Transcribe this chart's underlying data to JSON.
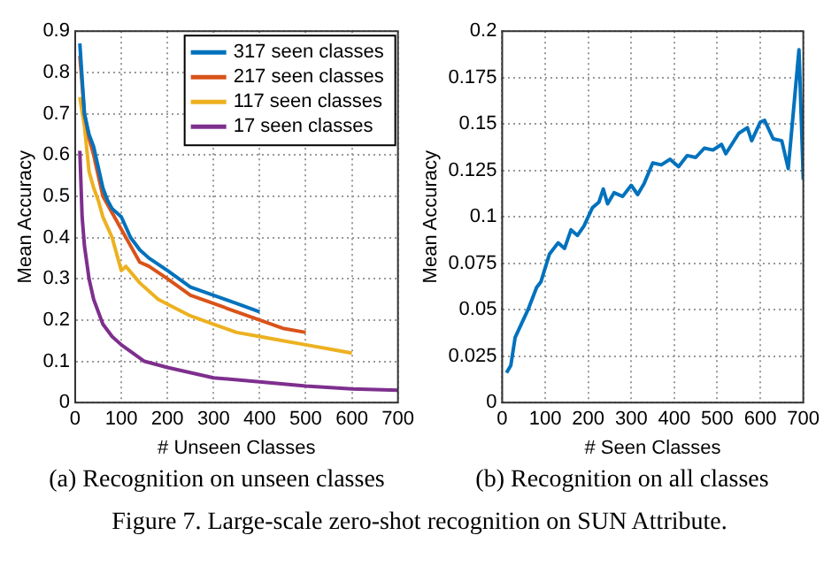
{
  "chart_data": [
    {
      "type": "line",
      "title": "(a) Recognition on unseen classes",
      "xlabel": "# Unseen Classes",
      "ylabel": "Mean Accuracy",
      "xlim": [
        0,
        700
      ],
      "xticks": [
        0,
        100,
        200,
        300,
        400,
        500,
        600,
        700
      ],
      "ylim": [
        0,
        0.9
      ],
      "yticks": [
        0,
        0.1,
        0.2,
        0.3,
        0.4,
        0.5,
        0.6,
        0.7,
        0.8,
        0.9
      ],
      "grid": true,
      "legend": "top right",
      "marker": "none",
      "line_style": "solid",
      "annotations": [
        "Figure 7. Large-scale zero-shot recognition on SUN Attribute."
      ],
      "series": [
        {
          "name": "317 seen classes",
          "color": "#0072bd",
          "x": [
            10,
            20,
            30,
            40,
            50,
            60,
            70,
            80,
            100,
            120,
            140,
            160,
            200,
            250,
            300,
            350,
            400
          ],
          "values": [
            0.87,
            0.7,
            0.65,
            0.62,
            0.57,
            0.52,
            0.49,
            0.47,
            0.45,
            0.4,
            0.37,
            0.35,
            0.32,
            0.28,
            0.26,
            0.24,
            0.22
          ]
        },
        {
          "name": "217 seen classes",
          "color": "#d95319",
          "x": [
            10,
            20,
            30,
            40,
            50,
            60,
            80,
            100,
            120,
            140,
            160,
            200,
            250,
            300,
            350,
            400,
            450,
            500
          ],
          "values": [
            0.84,
            0.7,
            0.64,
            0.6,
            0.55,
            0.5,
            0.46,
            0.42,
            0.38,
            0.34,
            0.33,
            0.3,
            0.26,
            0.24,
            0.22,
            0.2,
            0.18,
            0.17
          ]
        },
        {
          "name": "117 seen classes",
          "color": "#edb120",
          "x": [
            10,
            20,
            30,
            40,
            50,
            60,
            80,
            100,
            110,
            140,
            180,
            250,
            300,
            350,
            400,
            450,
            500,
            550,
            600
          ],
          "values": [
            0.74,
            0.67,
            0.56,
            0.52,
            0.49,
            0.45,
            0.4,
            0.32,
            0.33,
            0.29,
            0.25,
            0.21,
            0.19,
            0.17,
            0.16,
            0.15,
            0.14,
            0.13,
            0.12
          ]
        },
        {
          "name": "17 seen classes",
          "color": "#7e2f8e",
          "x": [
            10,
            15,
            20,
            30,
            40,
            60,
            80,
            100,
            150,
            200,
            300,
            400,
            500,
            600,
            700
          ],
          "values": [
            0.61,
            0.45,
            0.38,
            0.3,
            0.25,
            0.19,
            0.16,
            0.14,
            0.1,
            0.085,
            0.06,
            0.05,
            0.04,
            0.033,
            0.03
          ]
        }
      ]
    },
    {
      "type": "line",
      "title": "(b) Recognition on all classes",
      "xlabel": "# Seen Classes",
      "ylabel": "Mean Accuracy",
      "xlim": [
        0,
        700
      ],
      "xticks": [
        0,
        100,
        200,
        300,
        400,
        500,
        600,
        700
      ],
      "ylim": [
        0,
        0.2
      ],
      "yticks": [
        0,
        0.025,
        0.05,
        0.075,
        0.1,
        0.125,
        0.15,
        0.175,
        0.2
      ],
      "grid": true,
      "marker": "none",
      "line_style": "solid",
      "series": [
        {
          "color": "#0072bd",
          "x": [
            10,
            20,
            30,
            40,
            60,
            80,
            90,
            110,
            130,
            145,
            160,
            175,
            190,
            210,
            225,
            235,
            245,
            260,
            280,
            300,
            315,
            330,
            350,
            370,
            390,
            410,
            430,
            450,
            470,
            490,
            510,
            520,
            550,
            570,
            580,
            600,
            610,
            630,
            650,
            665,
            690,
            700
          ],
          "values": [
            0.016,
            0.02,
            0.035,
            0.04,
            0.05,
            0.062,
            0.065,
            0.08,
            0.086,
            0.083,
            0.093,
            0.09,
            0.095,
            0.105,
            0.108,
            0.115,
            0.107,
            0.113,
            0.111,
            0.117,
            0.112,
            0.118,
            0.129,
            0.128,
            0.131,
            0.127,
            0.133,
            0.132,
            0.137,
            0.136,
            0.139,
            0.134,
            0.145,
            0.148,
            0.141,
            0.151,
            0.152,
            0.142,
            0.141,
            0.126,
            0.19,
            0.12
          ]
        }
      ]
    }
  ]
}
